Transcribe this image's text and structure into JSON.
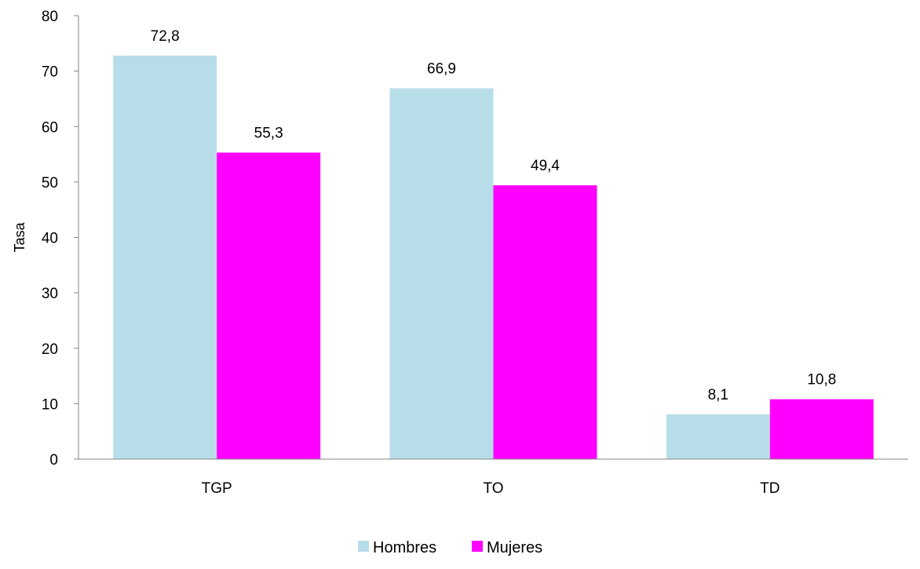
{
  "chart_data": {
    "type": "bar",
    "title": "",
    "xlabel": "",
    "ylabel": "Tasa",
    "ylim": [
      0,
      80
    ],
    "yticks": [
      0,
      10,
      20,
      30,
      40,
      50,
      60,
      70,
      80
    ],
    "grid": false,
    "legend_position": "bottom",
    "categories": [
      "TGP",
      "TO",
      "TD"
    ],
    "series": [
      {
        "name": "Hombres",
        "color": "#b7dde8",
        "values": [
          72.8,
          66.9,
          8.1
        ],
        "labels": [
          "72,8",
          "66,9",
          "8,1"
        ]
      },
      {
        "name": "Mujeres",
        "color": "#ff00ff",
        "values": [
          55.3,
          49.4,
          10.8
        ],
        "labels": [
          "55,3",
          "49,4",
          "10,8"
        ]
      }
    ]
  }
}
